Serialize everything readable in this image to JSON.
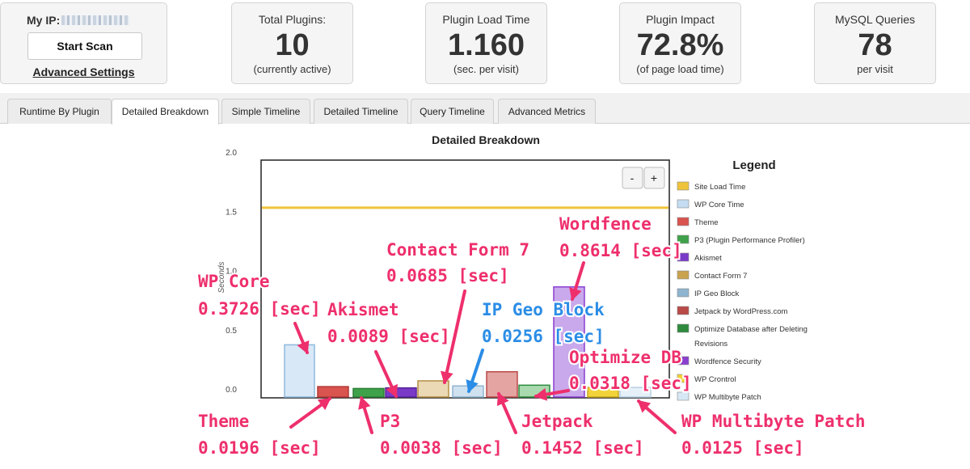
{
  "header": {
    "ip_label": "My IP:",
    "scan_button": "Start Scan",
    "advanced_link": "Advanced Settings",
    "stats": [
      {
        "title": "Total Plugins:",
        "value": "10",
        "sub": "(currently active)"
      },
      {
        "title": "Plugin Load Time",
        "value": "1.160",
        "sub": "(sec. per visit)"
      },
      {
        "title": "Plugin Impact",
        "value": "72.8%",
        "sub": "(of page load time)"
      },
      {
        "title": "MySQL Queries",
        "value": "78",
        "sub": "per visit"
      }
    ]
  },
  "tabs": [
    {
      "label": "Runtime By Plugin",
      "active": false
    },
    {
      "label": "Detailed Breakdown",
      "active": true
    },
    {
      "label": "Simple Timeline",
      "active": false
    },
    {
      "label": "Detailed Timeline",
      "active": false
    },
    {
      "label": "Query Timeline",
      "active": false
    },
    {
      "label": "Advanced Metrics",
      "active": false
    }
  ],
  "zoom": {
    "minus": "-",
    "plus": "+"
  },
  "chart_data": {
    "type": "bar",
    "title": "Detailed Breakdown",
    "ylabel": "Seconds",
    "ylim": [
      0,
      2.0
    ],
    "yticks": [
      "2.0",
      "1.5",
      "1.0",
      "0.5",
      "0.0"
    ],
    "site_load_time": 1.53,
    "legend_title": "Legend",
    "legend": [
      {
        "name": "Site Load Time",
        "color": "#f0c43a"
      },
      {
        "name": "WP Core Time",
        "color": "#c4ddf2"
      },
      {
        "name": "Theme",
        "color": "#d9534f"
      },
      {
        "name": "P3 (Plugin Performance Profiler)",
        "color": "#3fa24a"
      },
      {
        "name": "Akismet",
        "color": "#7a3ac8"
      },
      {
        "name": "Contact Form 7",
        "color": "#c9a34e"
      },
      {
        "name": "IP Geo Block",
        "color": "#8fb4cf"
      },
      {
        "name": "Jetpack by WordPress.com",
        "color": "#b94a48"
      },
      {
        "name": "Optimize Database after Deleting Revisions",
        "color": "#2e8b3e"
      },
      {
        "name": "Wordfence Security",
        "color": "#8a3fd1"
      },
      {
        "name": "WP Crontrol",
        "color": "#f2d33a"
      },
      {
        "name": "WP Multibyte Patch",
        "color": "#d7e8f5"
      }
    ],
    "bars": [
      {
        "name": "WP Core",
        "value": 0.3726,
        "color": "#d8e8f7",
        "stroke": "#8fb8dc"
      },
      {
        "name": "Theme",
        "value": 0.0196,
        "color": "#d9534f",
        "stroke": "#b03a36"
      },
      {
        "name": "P3",
        "value": 0.0038,
        "color": "#3fa24a",
        "stroke": "#2c7f35"
      },
      {
        "name": "Akismet",
        "value": 0.0089,
        "color": "#7a3ac8",
        "stroke": "#5a2599"
      },
      {
        "name": "Contact Form 7",
        "value": 0.0685,
        "color": "#ead9b4",
        "stroke": "#b58d44"
      },
      {
        "name": "IP Geo Block",
        "value": 0.0256,
        "color": "#cfe0ee",
        "stroke": "#8fb4cf"
      },
      {
        "name": "Jetpack",
        "value": 0.1452,
        "color": "#e3a4a2",
        "stroke": "#b94a48"
      },
      {
        "name": "Optimize DB",
        "value": 0.0318,
        "color": "#a9d9ae",
        "stroke": "#2e8b3e"
      },
      {
        "name": "Wordfence",
        "value": 0.8614,
        "color": "#c9a9ec",
        "stroke": "#8a3fd1"
      },
      {
        "name": "WP Crontrol",
        "value": 0.0125,
        "color": "#f2d33a",
        "stroke": "#c8a920"
      },
      {
        "name": "WP Multibyte Patch",
        "value": 0.0125,
        "color": "#e6f0f8",
        "stroke": "#b8d0e4"
      }
    ]
  },
  "annotations": [
    {
      "id": "wp-core",
      "l1": "WP Core",
      "l2": "0.3726 [sec]",
      "color": "#ee2f6c"
    },
    {
      "id": "akismet",
      "l1": "Akismet",
      "l2": "0.0089 [sec]",
      "color": "#ee2f6c"
    },
    {
      "id": "contact-form",
      "l1": "Contact Form 7",
      "l2": "0.0685 [sec]",
      "color": "#ee2f6c"
    },
    {
      "id": "ip-geo",
      "l1": "IP Geo Block",
      "l2": "0.0256 [sec]",
      "color": "#2b8de6"
    },
    {
      "id": "wordfence",
      "l1": "Wordfence",
      "l2": "0.8614 [sec]",
      "color": "#ee2f6c"
    },
    {
      "id": "optimize-db",
      "l1": "Optimize DB",
      "l2": "0.0318 [sec]",
      "color": "#ee2f6c"
    },
    {
      "id": "theme",
      "l1": "Theme",
      "l2": "0.0196 [sec]",
      "color": "#ee2f6c"
    },
    {
      "id": "p3",
      "l1": "P3",
      "l2": "0.0038 [sec]",
      "color": "#ee2f6c"
    },
    {
      "id": "jetpack",
      "l1": "Jetpack",
      "l2": "0.1452 [sec]",
      "color": "#ee2f6c"
    },
    {
      "id": "wp-multibyte",
      "l1": "WP Multibyte Patch",
      "l2": "0.0125 [sec]",
      "color": "#ee2f6c"
    }
  ]
}
